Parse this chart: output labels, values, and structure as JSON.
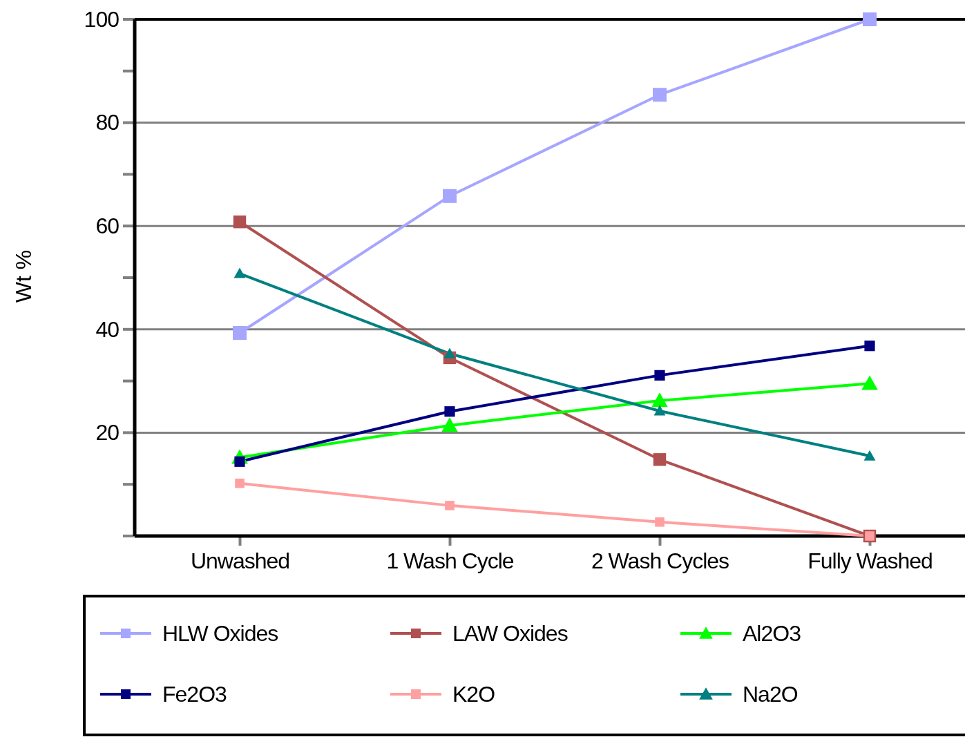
{
  "chart_data": {
    "type": "line",
    "ylabel": "Wt %",
    "categories": [
      "Unwashed",
      "1 Wash Cycle",
      "2 Wash Cycles",
      "Fully Washed"
    ],
    "ylim": [
      0,
      100
    ],
    "yticks": [
      20,
      40,
      60,
      80,
      100
    ],
    "grid": "y",
    "legend": "bottom",
    "line_style": "solid",
    "series": [
      {
        "name": "HLW Oxides",
        "color": "#a6a6ff",
        "marker": "square",
        "values": [
          39.3,
          65.8,
          85.4,
          100
        ]
      },
      {
        "name": "LAW Oxides",
        "color": "#b05050",
        "marker": "square",
        "values": [
          60.8,
          34.5,
          14.8,
          0
        ]
      },
      {
        "name": "Al2O3",
        "color": "#00ff00",
        "marker": "triangle",
        "values": [
          15.2,
          21.4,
          26.2,
          29.5
        ]
      },
      {
        "name": "Fe2O3",
        "color": "#000080",
        "marker": "square",
        "values": [
          14.4,
          24.1,
          31.1,
          36.8
        ]
      },
      {
        "name": "K2O",
        "color": "#ffa0a0",
        "marker": "square",
        "values": [
          10.2,
          5.9,
          2.7,
          0
        ]
      },
      {
        "name": "Na2O",
        "color": "#008080",
        "marker": "triangle",
        "values": [
          50.8,
          35.3,
          24.2,
          15.5
        ]
      }
    ]
  }
}
